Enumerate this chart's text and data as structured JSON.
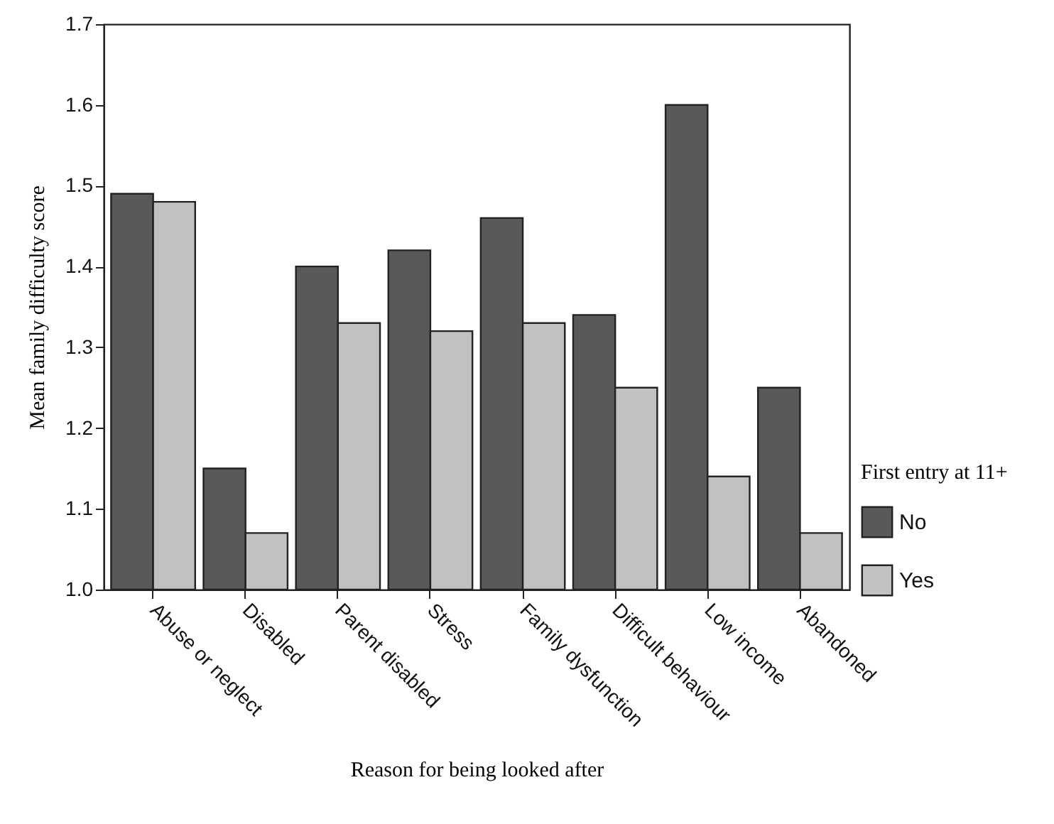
{
  "chart_data": {
    "type": "bar",
    "xlabel": "Reason for being looked after",
    "ylabel": "Mean family difficulty score",
    "legend_title": "First entry at 11+",
    "legend": "right",
    "categories": [
      "Abuse or neglect",
      "Disabled",
      "Parent disabled",
      "Stress",
      "Family dysfunction",
      "Difficult behaviour",
      "Low income",
      "Abandoned"
    ],
    "series": [
      {
        "name": "No",
        "color": "#58595b",
        "values": [
          1.49,
          1.15,
          1.4,
          1.42,
          1.46,
          1.34,
          1.6,
          1.25
        ]
      },
      {
        "name": "Yes",
        "color": "#c0c1c3",
        "values": [
          1.48,
          1.07,
          1.33,
          1.32,
          1.33,
          1.25,
          1.14,
          1.07
        ]
      }
    ],
    "ylim": [
      1.0,
      1.7
    ],
    "yticks": [
      {
        "value": 1.0,
        "label": "1.0"
      },
      1.1,
      1.2,
      1.3,
      1.4,
      1.5,
      1.6,
      1.7
    ],
    "grid": false
  }
}
